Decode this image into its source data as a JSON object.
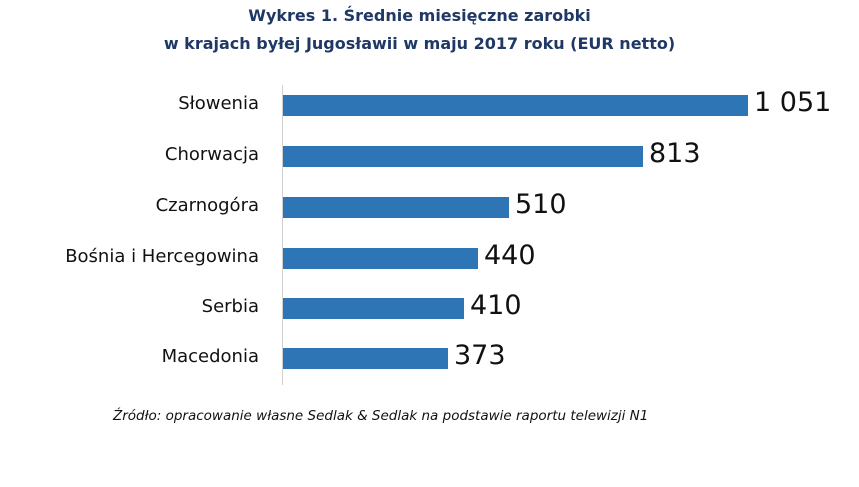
{
  "header": {
    "title_line1": "Wykres 1. Średnie miesięczne zarobki",
    "title_line2": "w krajach byłej Jugosławii w maju 2017 roku (EUR netto)"
  },
  "rows": [
    {
      "label": "Słowenia",
      "value": 1051,
      "value_label": "1 051"
    },
    {
      "label": "Chorwacja",
      "value": 813,
      "value_label": "813"
    },
    {
      "label": "Czarnogóra",
      "value": 510,
      "value_label": "510"
    },
    {
      "label": "Bośnia i Hercegowina",
      "value": 440,
      "value_label": "440"
    },
    {
      "label": "Serbia",
      "value": 410,
      "value_label": "410"
    },
    {
      "label": "Macedonia",
      "value": 373,
      "value_label": "373"
    }
  ],
  "footer": {
    "source": "Źródło: opracowanie własne Sedlak & Sedlak na podstawie raportu telewizji N1"
  },
  "colors": {
    "bar": "#2e75b6",
    "title": "#1f3864"
  },
  "chart_data": {
    "type": "bar",
    "orientation": "horizontal",
    "title": "Wykres 1. Średnie miesięczne zarobki w krajach byłej Jugosławii w maju 2017 roku (EUR netto)",
    "categories": [
      "Słowenia",
      "Chorwacja",
      "Czarnogóra",
      "Bośnia i Hercegowina",
      "Serbia",
      "Macedonia"
    ],
    "values": [
      1051,
      813,
      510,
      440,
      410,
      373
    ],
    "xlabel": "",
    "ylabel": "",
    "unit": "EUR netto",
    "grid": false,
    "legend": null,
    "data_labels": true,
    "source": "Źródło: opracowanie własne Sedlak & Sedlak na podstawie raportu telewizji N1"
  }
}
